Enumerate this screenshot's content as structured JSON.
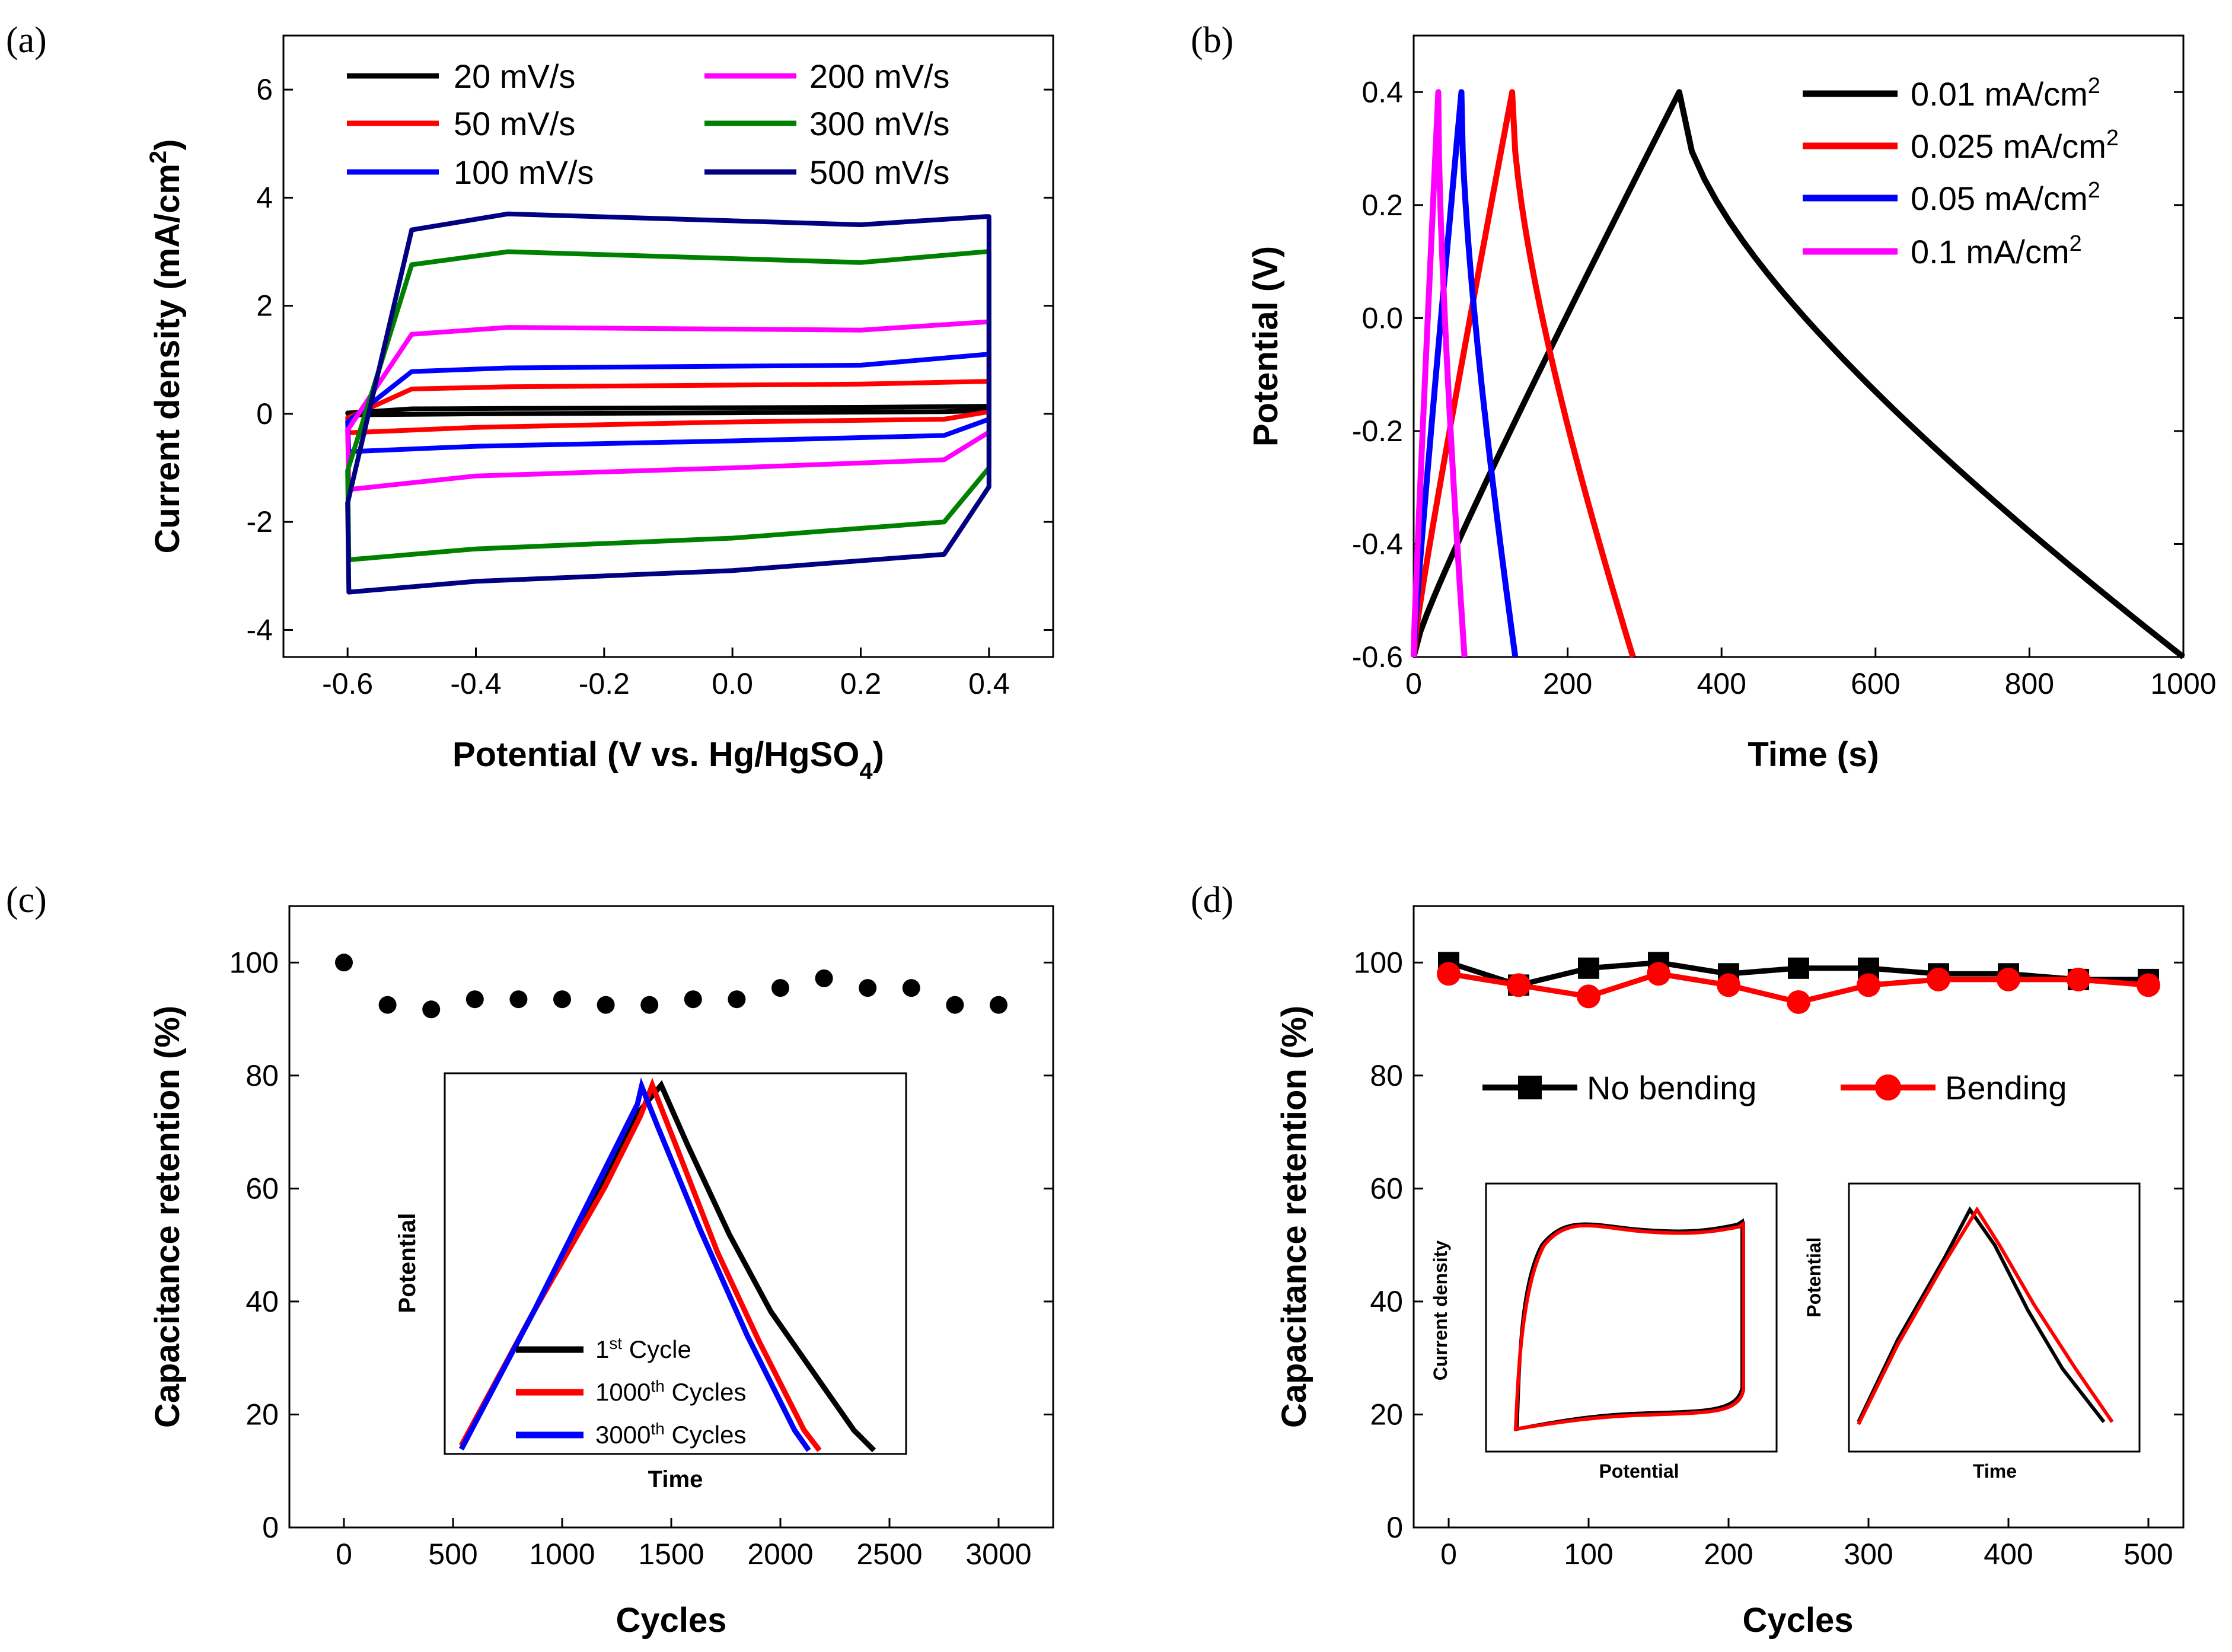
{
  "chart_data": [
    {
      "panel": "(a)",
      "type": "line",
      "xlabel": "Potential (V vs. Hg/HgSO",
      "xlabel_sub": "4",
      "xlabel_end": ")",
      "ylabel": "Current density (mA/cm",
      "ylabel_sup": "2",
      "ylabel_end": ")",
      "xlim": [
        -0.7,
        0.5
      ],
      "ylim": [
        -4.5,
        7
      ],
      "xticks": [
        -0.6,
        -0.4,
        -0.2,
        0.0,
        0.2,
        0.4
      ],
      "xtick_labels": [
        "-0.6",
        "-0.4",
        "-0.2",
        "0.0",
        "0.2",
        "0.4"
      ],
      "yticks": [
        -4,
        -2,
        0,
        2,
        4,
        6
      ],
      "ytick_labels": [
        "-4",
        "-2",
        "0",
        "2",
        "4",
        "6"
      ],
      "legend": [
        "20 mV/s",
        "50 mV/s",
        "100 mV/s",
        "200 mV/s",
        "300 mV/s",
        "500 mV/s"
      ],
      "series": [
        {
          "name": "20 mV/s",
          "color": "#000000",
          "x_min": -0.6,
          "x_max": 0.4,
          "top": [
            0.05,
            0.1,
            0.12,
            0.14
          ],
          "bottom": [
            -0.02,
            0.0,
            0.02,
            0.04
          ]
        },
        {
          "name": "50 mV/s",
          "color": "#ff0000",
          "x_min": -0.6,
          "x_max": 0.4,
          "top": [
            0.2,
            0.5,
            0.55,
            0.6
          ],
          "bottom": [
            -0.35,
            -0.25,
            -0.15,
            -0.1
          ]
        },
        {
          "name": "100 mV/s",
          "color": "#0000ff",
          "x_min": -0.6,
          "x_max": 0.4,
          "top": [
            0.4,
            0.85,
            0.9,
            1.1
          ],
          "bottom": [
            -0.7,
            -0.6,
            -0.5,
            -0.4
          ]
        },
        {
          "name": "200 mV/s",
          "color": "#ff00ff",
          "x_min": -0.6,
          "x_max": 0.4,
          "top": [
            0.8,
            1.6,
            1.55,
            1.7
          ],
          "bottom": [
            -1.4,
            -1.15,
            -1.0,
            -0.85
          ]
        },
        {
          "name": "300 mV/s",
          "color": "#008000",
          "x_min": -0.6,
          "x_max": 0.4,
          "top": [
            0.6,
            3.0,
            2.8,
            3.0
          ],
          "bottom": [
            -2.7,
            -2.5,
            -2.3,
            -2.0
          ]
        },
        {
          "name": "500 mV/s",
          "color": "#000080",
          "x_min": -0.6,
          "x_max": 0.4,
          "top": [
            0.0,
            3.7,
            3.5,
            3.65
          ],
          "bottom": [
            -3.3,
            -3.1,
            -2.9,
            -2.6
          ]
        }
      ]
    },
    {
      "panel": "(b)",
      "type": "line",
      "xlabel": "Time (s)",
      "ylabel": "Potential (V)",
      "xlim": [
        0,
        1000
      ],
      "ylim": [
        -0.6,
        0.5
      ],
      "xticks": [
        0,
        200,
        400,
        600,
        800,
        1000
      ],
      "xtick_labels": [
        "0",
        "200",
        "400",
        "600",
        "800",
        "1000"
      ],
      "yticks": [
        -0.6,
        -0.4,
        -0.2,
        0.0,
        0.2,
        0.4
      ],
      "ytick_labels": [
        "-0.6",
        "-0.4",
        "-0.2",
        "0.0",
        "0.2",
        "0.4"
      ],
      "legend": [
        "0.01 mA/cm",
        "0.025 mA/cm",
        "0.05 mA/cm",
        "0.1 mA/cm"
      ],
      "legend_sup": "2",
      "series": [
        {
          "name": "0.01 mA/cm2",
          "color": "#000000",
          "charge_end": 345,
          "discharge_end": 1000
        },
        {
          "name": "0.025 mA/cm2",
          "color": "#ff0000",
          "charge_end": 128,
          "discharge_end": 285
        },
        {
          "name": "0.05 mA/cm2",
          "color": "#0000ff",
          "charge_end": 62,
          "discharge_end": 132
        },
        {
          "name": "0.1 mA/cm2",
          "color": "#ff00ff",
          "charge_end": 32,
          "discharge_end": 66
        }
      ]
    },
    {
      "panel": "(c)",
      "type": "scatter",
      "xlabel": "Cycles",
      "ylabel": "Capacitance retention (%)",
      "xlim": [
        -250,
        3250
      ],
      "ylim": [
        0,
        110
      ],
      "xticks": [
        0,
        500,
        1000,
        1500,
        2000,
        2500,
        3000
      ],
      "xtick_labels": [
        "0",
        "500",
        "1000",
        "1500",
        "2000",
        "2500",
        "3000"
      ],
      "yticks": [
        0,
        20,
        40,
        60,
        80,
        100
      ],
      "ytick_labels": [
        "0",
        "20",
        "40",
        "60",
        "80",
        "100"
      ],
      "x": [
        0,
        200,
        400,
        600,
        800,
        1000,
        1200,
        1400,
        1600,
        1800,
        2000,
        2200,
        2400,
        2600,
        2800,
        3000
      ],
      "y": [
        100,
        92.5,
        91.7,
        93.5,
        93.5,
        93.5,
        92.5,
        92.5,
        93.5,
        93.5,
        95.5,
        97.2,
        95.5,
        95.5,
        92.5,
        92.5
      ],
      "inset": {
        "xlabel": "Time",
        "ylabel": "Potential",
        "legend": [
          {
            "pre": "1",
            "sup": "st",
            "post": " Cycle",
            "color": "#000000"
          },
          {
            "pre": "1000",
            "sup": "th",
            "post": " Cycles",
            "color": "#ff0000"
          },
          {
            "pre": "3000",
            "sup": "th",
            "post": " Cycles",
            "color": "#0000ff"
          }
        ]
      }
    },
    {
      "panel": "(d)",
      "type": "line",
      "xlabel": "Cycles",
      "ylabel": "Capacitance retention (%)",
      "xlim": [
        -25,
        525
      ],
      "ylim": [
        0,
        110
      ],
      "xticks": [
        0,
        100,
        200,
        300,
        400,
        500
      ],
      "xtick_labels": [
        "0",
        "100",
        "200",
        "300",
        "400",
        "500"
      ],
      "yticks": [
        0,
        20,
        40,
        60,
        80,
        100
      ],
      "ytick_labels": [
        "0",
        "20",
        "40",
        "60",
        "80",
        "100"
      ],
      "x": [
        0,
        50,
        100,
        150,
        200,
        250,
        300,
        350,
        400,
        450,
        500
      ],
      "series": [
        {
          "name": "No bending",
          "color": "#000000",
          "marker": "square",
          "values": [
            100,
            96,
            99,
            100,
            98,
            99,
            99,
            98,
            98,
            97,
            97
          ]
        },
        {
          "name": "Bending",
          "color": "#ff0000",
          "marker": "circle",
          "values": [
            98,
            96,
            94,
            98,
            96,
            93,
            96,
            97,
            97,
            97,
            96
          ]
        }
      ],
      "inset_cv": {
        "xlabel": "Potential",
        "ylabel": "Current density"
      },
      "inset_gcd": {
        "xlabel": "Time",
        "ylabel": "Potential"
      }
    }
  ]
}
